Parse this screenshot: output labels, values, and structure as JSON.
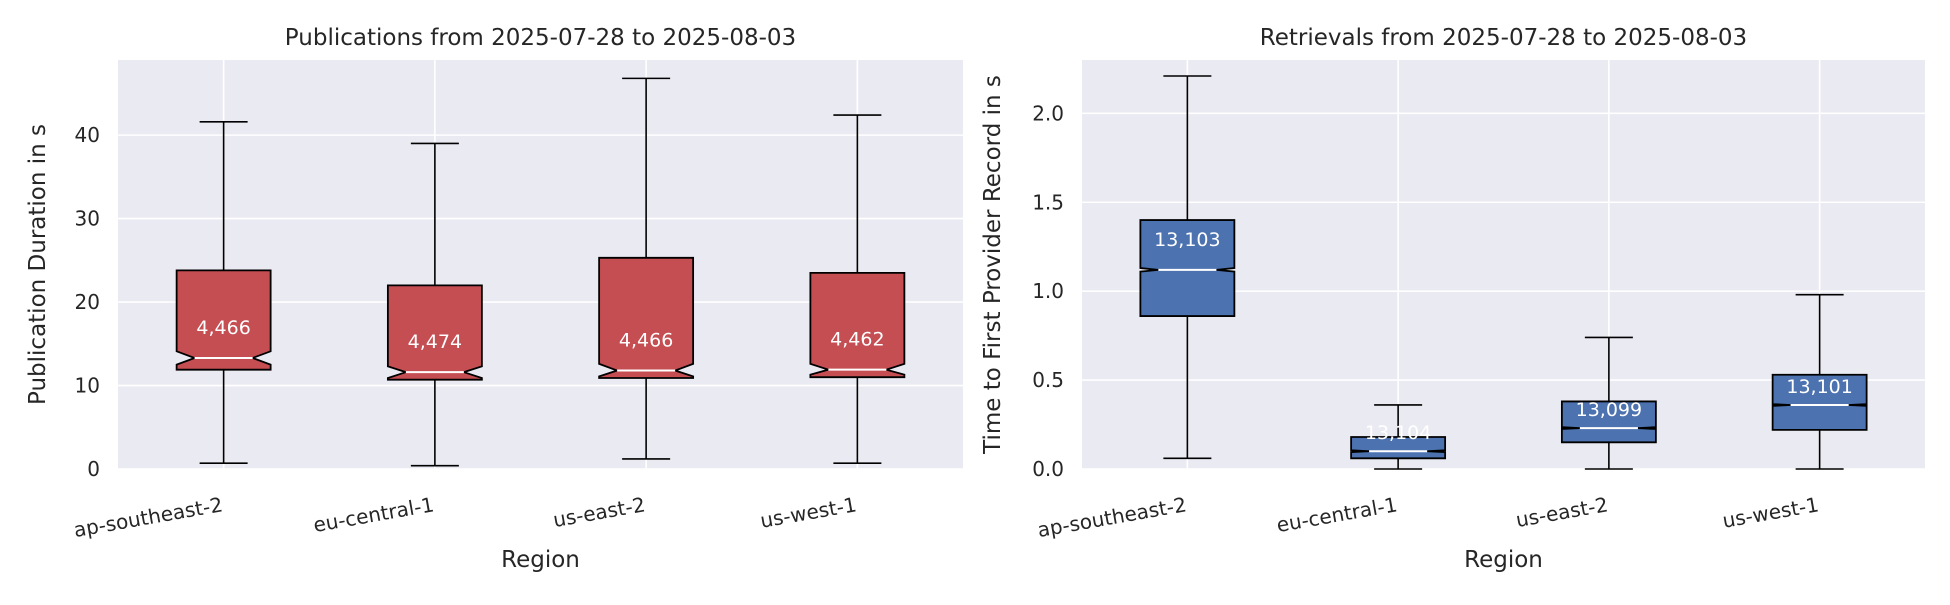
{
  "chart_data": [
    {
      "type": "box",
      "title": "Publications from 2025-07-28 to 2025-08-03",
      "xlabel": "Region",
      "ylabel": "Publication Duration in s",
      "ylim": [
        0,
        49
      ],
      "yticks": [
        0,
        10,
        20,
        30,
        40
      ],
      "grid": true,
      "notched": true,
      "box_color": "#c44e52",
      "categories": [
        "ap-southeast-2",
        "eu-central-1",
        "us-east-2",
        "us-west-1"
      ],
      "boxes": [
        {
          "whisker_low": 0.7,
          "q1": 11.9,
          "median": 13.3,
          "q3": 23.8,
          "whisker_high": 41.6,
          "notch_low": 12.5,
          "notch_high": 14.1,
          "count": "4,466"
        },
        {
          "whisker_low": 0.4,
          "q1": 10.7,
          "median": 11.6,
          "q3": 22.0,
          "whisker_high": 39.0,
          "notch_low": 10.9,
          "notch_high": 12.3,
          "count": "4,474"
        },
        {
          "whisker_low": 1.2,
          "q1": 10.9,
          "median": 11.8,
          "q3": 25.3,
          "whisker_high": 46.8,
          "notch_low": 11.1,
          "notch_high": 12.6,
          "count": "4,466"
        },
        {
          "whisker_low": 0.7,
          "q1": 11.0,
          "median": 11.9,
          "q3": 23.5,
          "whisker_high": 42.4,
          "notch_low": 11.3,
          "notch_high": 12.6,
          "count": "4,462"
        }
      ]
    },
    {
      "type": "box",
      "title": "Retrievals from 2025-07-28 to 2025-08-03",
      "xlabel": "Region",
      "ylabel": "Time to First Provider Record in s",
      "ylim": [
        0,
        2.3
      ],
      "yticks": [
        0.0,
        0.5,
        1.0,
        1.5,
        2.0
      ],
      "ytick_labels": [
        "0.0",
        "0.5",
        "1.0",
        "1.5",
        "2.0"
      ],
      "grid": true,
      "notched": true,
      "box_color": "#4c72b0",
      "categories": [
        "ap-southeast-2",
        "eu-central-1",
        "us-east-2",
        "us-west-1"
      ],
      "boxes": [
        {
          "whisker_low": 0.06,
          "q1": 0.86,
          "median": 1.12,
          "q3": 1.4,
          "whisker_high": 2.21,
          "notch_low": 1.11,
          "notch_high": 1.13,
          "count": "13,103"
        },
        {
          "whisker_low": 0.0,
          "q1": 0.06,
          "median": 0.1,
          "q3": 0.18,
          "whisker_high": 0.36,
          "notch_low": 0.095,
          "notch_high": 0.105,
          "count": "13,104"
        },
        {
          "whisker_low": 0.0,
          "q1": 0.15,
          "median": 0.23,
          "q3": 0.38,
          "whisker_high": 0.74,
          "notch_low": 0.225,
          "notch_high": 0.235,
          "count": "13,099"
        },
        {
          "whisker_low": 0.0,
          "q1": 0.22,
          "median": 0.36,
          "q3": 0.53,
          "whisker_high": 0.98,
          "notch_low": 0.355,
          "notch_high": 0.365,
          "count": "13,101"
        }
      ]
    }
  ]
}
